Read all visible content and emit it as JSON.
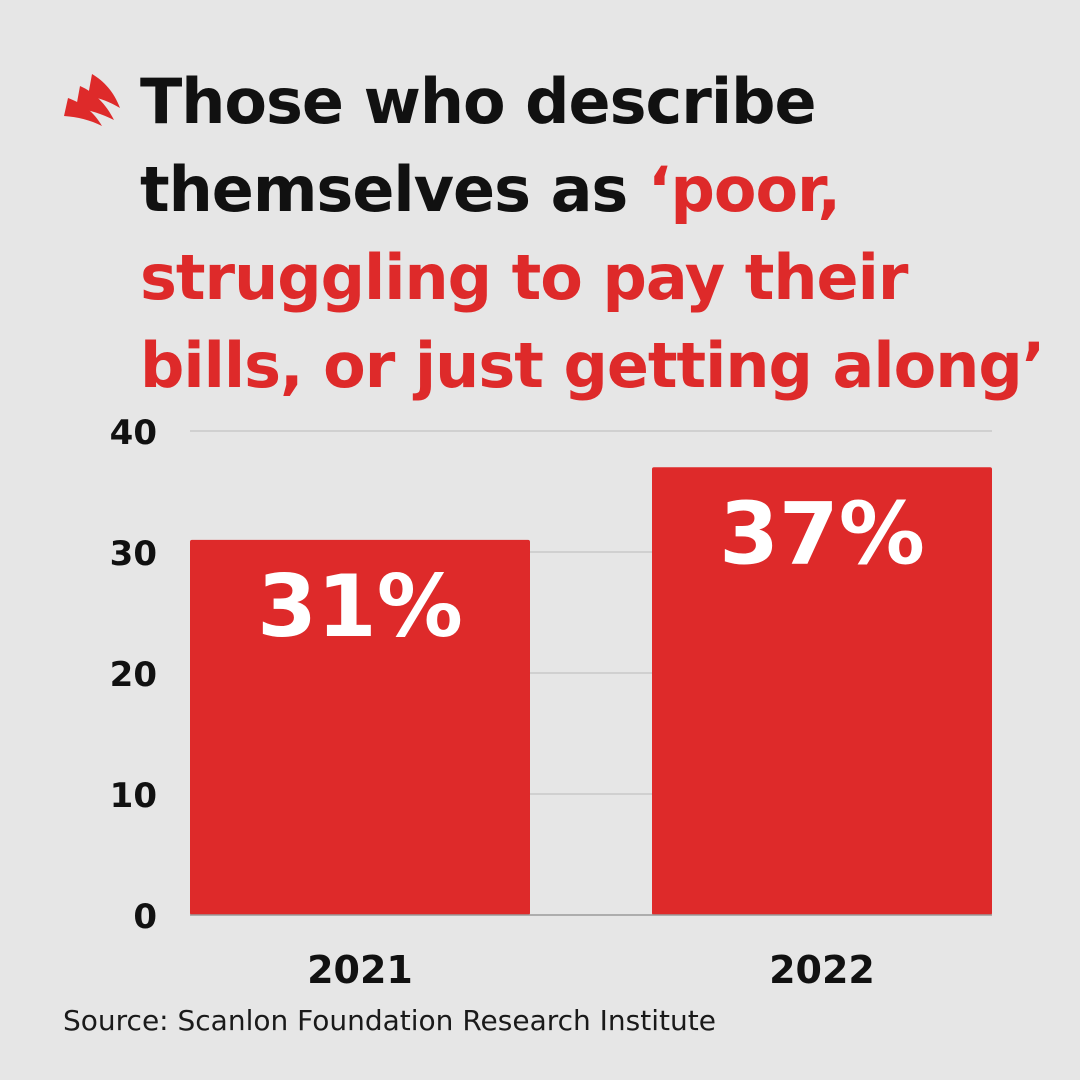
{
  "title": {
    "prefix": "Those who describe themselves as ",
    "highlight": "‘poor, struggling to pay their bills, or just getting along’"
  },
  "source": "Source: Scanlon Foundation Research Institute",
  "logo": {
    "icon": "sbs-logo-icon"
  },
  "colors": {
    "background": "#e6e6e6",
    "accent": "#de2a2a",
    "text": "#111111",
    "grid": "#c4c4c4"
  },
  "chart_data": {
    "type": "bar",
    "categories": [
      "2021",
      "2022"
    ],
    "values": [
      31,
      37
    ],
    "data_labels": [
      "31%",
      "37%"
    ],
    "yticks": [
      "0",
      "10",
      "20",
      "30",
      "40"
    ],
    "ylim": [
      0,
      40
    ],
    "xlabel": "",
    "ylabel": "",
    "grid": true
  }
}
